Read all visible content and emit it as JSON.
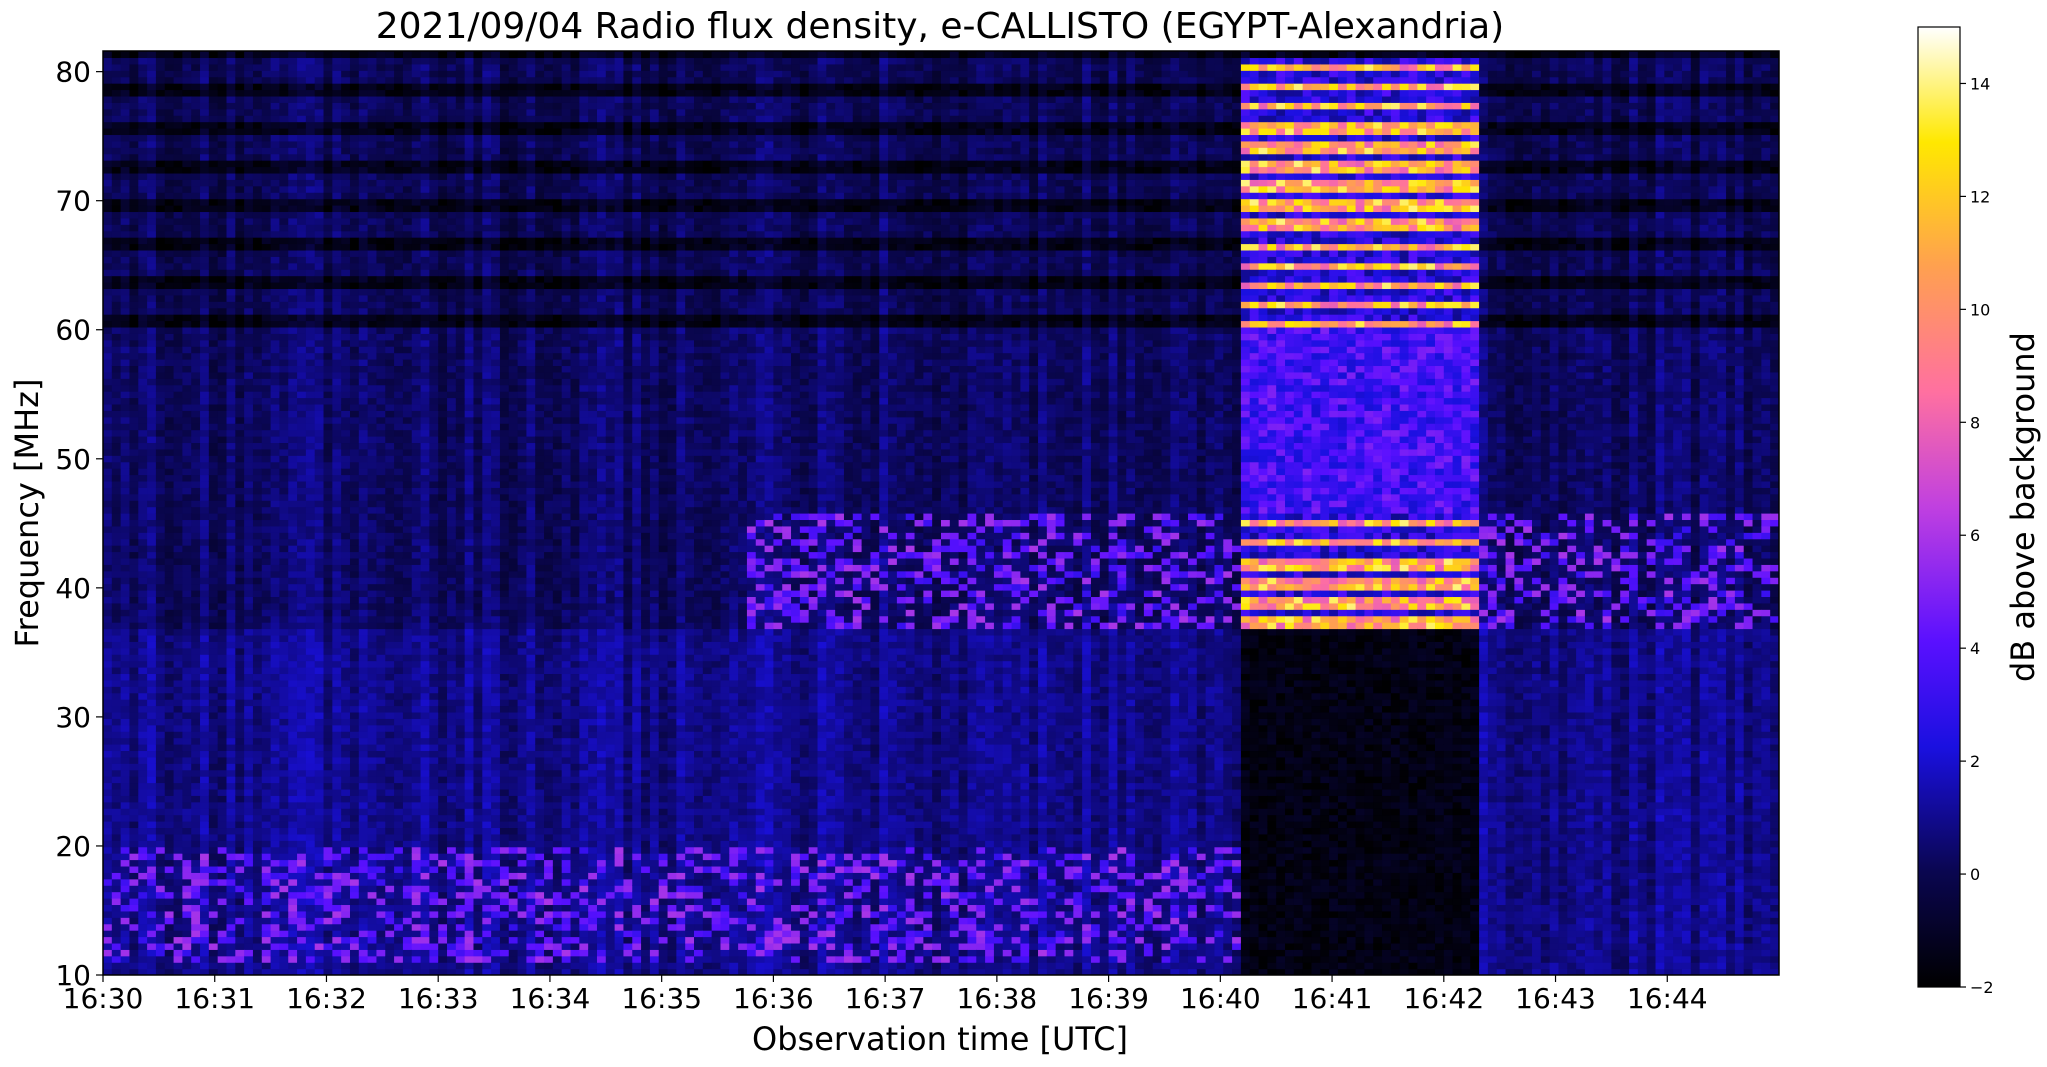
{
  "chart_data": {
    "type": "heatmap",
    "title": "2021/09/04  Radio flux density, e-CALLISTO (EGYPT-Alexandria)",
    "xlabel": "Observation time [UTC]",
    "ylabel": "Frequency [MHz]",
    "colorbar_label": "dB above background",
    "colormap": "gnuplot2",
    "x_ticks": [
      "16:30",
      "16:31",
      "16:32",
      "16:33",
      "16:34",
      "16:35",
      "16:36",
      "16:37",
      "16:38",
      "16:39",
      "16:40",
      "16:41",
      "16:42",
      "16:43",
      "16:44"
    ],
    "xlim": [
      "16:30",
      "16:45"
    ],
    "y_ticks": [
      10,
      20,
      30,
      40,
      50,
      60,
      70,
      80
    ],
    "ylim": [
      10,
      81.6
    ],
    "colorbar_ticks": [
      -2,
      0,
      2,
      4,
      6,
      8,
      10,
      12,
      14
    ],
    "clim": [
      -2,
      15
    ],
    "colors": {
      "background_band": "#1a14b8",
      "quiet_dark": "#05022e",
      "burst_peak": "#ffff70"
    },
    "features": [
      {
        "label": "intense burst",
        "time_start": "16:40:10",
        "time_end": "16:42:20",
        "freq_low": 37,
        "freq_high": 81,
        "peak_db": 14
      },
      {
        "label": "narrow band emission",
        "freq_low": 37,
        "freq_high": 46,
        "time_start": "16:35:45",
        "time_end": "16:45",
        "level_db": 5
      },
      {
        "label": "low frequency emission",
        "freq_low": 11,
        "freq_high": 20,
        "time_start": "16:30",
        "time_end": "16:40:10",
        "level_db": 5
      },
      {
        "label": "quiet depleted region",
        "freq_low": 10,
        "freq_high": 37,
        "time_start": "16:40:10",
        "time_end": "16:42:20",
        "level_db": -2
      }
    ]
  }
}
